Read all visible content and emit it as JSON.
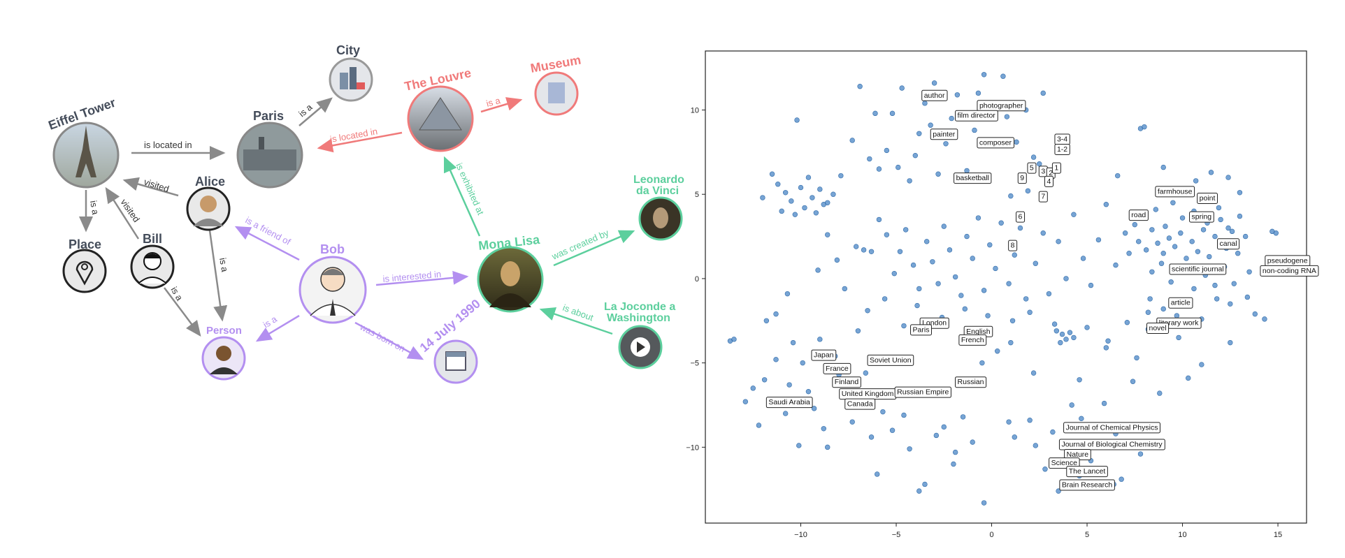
{
  "graph": {
    "nodes": {
      "eiffel_tower": "Eiffel Tower",
      "paris": "Paris",
      "city": "City",
      "louvre": "The Louvre",
      "museum": "Museum",
      "alice": "Alice",
      "bill": "Bill",
      "place": "Place",
      "bob": "Bob",
      "person": "Person",
      "mona_lisa": "Mona Lisa",
      "leonardo_line1": "Leonardo",
      "leonardo_line2": "da Vinci",
      "birthdate": "14 July 1990",
      "joconde_line1": "La Joconde a",
      "joconde_line2": "Washington"
    },
    "edges": {
      "eiffel_paris": "is located in",
      "paris_city": "is a",
      "louvre_paris": "is located in",
      "louvre_museum": "is a",
      "alice_eiffel": "visited",
      "bill_eiffel": "visited",
      "eiffel_place": "is a",
      "alice_person": "is a",
      "bill_person": "is a",
      "bob_alice": "is a friend of",
      "bob_mona": "is interested in",
      "mona_louvre": "is exhibited at",
      "mona_leonardo": "was created by",
      "joconde_mona": "is about",
      "bob_person": "is a",
      "bob_birth": "was born on"
    },
    "colors": {
      "gray": "#8a8a8a",
      "red": "#f07a7a",
      "green": "#5ccf9d",
      "purple": "#b38ff0",
      "dark_text": "#444c5a"
    }
  },
  "chart_data": {
    "type": "scatter",
    "title": "",
    "xlabel": "",
    "ylabel": "",
    "xlim": [
      -15,
      16.5
    ],
    "ylim": [
      -14.5,
      13.5
    ],
    "x_ticks": [
      -10,
      -5,
      0,
      5,
      10,
      15
    ],
    "x_tick_labels": [
      "−10",
      "−5",
      "0",
      "5",
      "10",
      "15"
    ],
    "y_ticks": [
      10,
      5,
      0,
      -5,
      -10
    ],
    "y_tick_labels": [
      "10",
      "5",
      "0",
      "−5",
      "−10"
    ],
    "point_color": "#4a86c5",
    "grid": false,
    "annotations": [
      {
        "text": "author",
        "x": -3.0,
        "y": 10.9
      },
      {
        "text": "photographer",
        "x": 0.5,
        "y": 10.3
      },
      {
        "text": "film director",
        "x": -0.8,
        "y": 9.7
      },
      {
        "text": "painter",
        "x": -2.5,
        "y": 8.6
      },
      {
        "text": "composer",
        "x": 0.2,
        "y": 8.1
      },
      {
        "text": "3-4",
        "x": 3.7,
        "y": 8.3
      },
      {
        "text": "1-2",
        "x": 3.7,
        "y": 7.7
      },
      {
        "text": "basketball",
        "x": -1.0,
        "y": 6.0
      },
      {
        "text": "5",
        "x": 2.1,
        "y": 6.6
      },
      {
        "text": "3",
        "x": 2.7,
        "y": 6.4
      },
      {
        "text": "2",
        "x": 3.1,
        "y": 6.3
      },
      {
        "text": "1",
        "x": 3.4,
        "y": 6.6
      },
      {
        "text": "9",
        "x": 1.6,
        "y": 6.0
      },
      {
        "text": "4",
        "x": 3.0,
        "y": 5.8
      },
      {
        "text": "7",
        "x": 2.7,
        "y": 4.9
      },
      {
        "text": "6",
        "x": 1.5,
        "y": 3.7
      },
      {
        "text": "8",
        "x": 1.1,
        "y": 2.0
      },
      {
        "text": "farmhouse",
        "x": 9.6,
        "y": 5.2
      },
      {
        "text": "point",
        "x": 11.3,
        "y": 4.8
      },
      {
        "text": "road",
        "x": 7.7,
        "y": 3.8
      },
      {
        "text": "spring",
        "x": 11.0,
        "y": 3.7
      },
      {
        "text": "canal",
        "x": 12.4,
        "y": 2.1
      },
      {
        "text": "pseudogene",
        "x": 15.5,
        "y": 1.1
      },
      {
        "text": "non-coding RNA",
        "x": 15.6,
        "y": 0.5
      },
      {
        "text": "scientific journal",
        "x": 10.8,
        "y": 0.6
      },
      {
        "text": "article",
        "x": 9.9,
        "y": -1.4
      },
      {
        "text": "literary work",
        "x": 9.8,
        "y": -2.6
      },
      {
        "text": "novel",
        "x": 8.7,
        "y": -2.9
      },
      {
        "text": "London",
        "x": -3.0,
        "y": -2.6
      },
      {
        "text": "Paris",
        "x": -3.7,
        "y": -3.0
      },
      {
        "text": "English",
        "x": -0.7,
        "y": -3.1
      },
      {
        "text": "French",
        "x": -1.0,
        "y": -3.6
      },
      {
        "text": "Japan",
        "x": -8.8,
        "y": -4.5
      },
      {
        "text": "Soviet Union",
        "x": -5.3,
        "y": -4.8
      },
      {
        "text": "France",
        "x": -8.1,
        "y": -5.3
      },
      {
        "text": "Finland",
        "x": -7.6,
        "y": -6.1
      },
      {
        "text": "Russian",
        "x": -1.1,
        "y": -6.1
      },
      {
        "text": "United Kingdom",
        "x": -6.5,
        "y": -6.8
      },
      {
        "text": "Russian Empire",
        "x": -3.6,
        "y": -6.7
      },
      {
        "text": "Saudi Arabia",
        "x": -10.6,
        "y": -7.3
      },
      {
        "text": "Canada",
        "x": -6.9,
        "y": -7.4
      },
      {
        "text": "Journal of Chemical Physics",
        "x": 6.3,
        "y": -8.8
      },
      {
        "text": "Journal of Biological Chemistry",
        "x": 6.3,
        "y": -9.8
      },
      {
        "text": "Nature",
        "x": 4.5,
        "y": -10.4
      },
      {
        "text": "Science",
        "x": 3.8,
        "y": -10.9
      },
      {
        "text": "The Lancet",
        "x": 5.0,
        "y": -11.4
      },
      {
        "text": "Brain Research",
        "x": 5.0,
        "y": -12.2
      }
    ],
    "points": [
      [
        -13.7,
        -3.7
      ],
      [
        -13.5,
        -3.6
      ],
      [
        -12.9,
        -7.3
      ],
      [
        -12.5,
        -6.5
      ],
      [
        -12.2,
        -8.7
      ],
      [
        -12.0,
        4.8
      ],
      [
        -11.8,
        -2.5
      ],
      [
        -11.9,
        -6.0
      ],
      [
        -11.3,
        -4.8
      ],
      [
        -11.0,
        -7.2
      ],
      [
        -10.8,
        -8.0
      ],
      [
        -10.6,
        -6.3
      ],
      [
        -10.4,
        -3.8
      ],
      [
        -10.1,
        -9.9
      ],
      [
        -9.9,
        -5.0
      ],
      [
        -9.6,
        -6.7
      ],
      [
        -9.3,
        -7.7
      ],
      [
        -9.0,
        -3.6
      ],
      [
        -8.8,
        -8.9
      ],
      [
        -8.6,
        -10.0
      ],
      [
        -8.2,
        -4.6
      ],
      [
        -8.0,
        -5.7
      ],
      [
        -7.6,
        -6.9
      ],
      [
        -7.3,
        -8.5
      ],
      [
        -7.0,
        -3.1
      ],
      [
        -6.6,
        -5.6
      ],
      [
        -6.3,
        -9.4
      ],
      [
        -6.0,
        -11.6
      ],
      [
        -5.7,
        -7.9
      ],
      [
        -5.2,
        -9.0
      ],
      [
        -4.6,
        -8.1
      ],
      [
        -4.3,
        -10.1
      ],
      [
        -3.8,
        -12.6
      ],
      [
        -3.5,
        -12.2
      ],
      [
        -2.9,
        -9.3
      ],
      [
        -2.5,
        -8.8
      ],
      [
        -2.0,
        -11.0
      ],
      [
        -1.9,
        -10.3
      ],
      [
        -1.5,
        -8.2
      ],
      [
        -1.0,
        -9.7
      ],
      [
        -0.4,
        -13.3
      ],
      [
        -11.5,
        6.2
      ],
      [
        -11.2,
        5.6
      ],
      [
        -11.0,
        4.0
      ],
      [
        -10.8,
        5.1
      ],
      [
        -10.5,
        4.6
      ],
      [
        -10.3,
        3.8
      ],
      [
        -10.0,
        5.4
      ],
      [
        -9.8,
        4.2
      ],
      [
        -9.6,
        6.0
      ],
      [
        -9.4,
        4.8
      ],
      [
        -9.2,
        3.9
      ],
      [
        -9.0,
        5.3
      ],
      [
        -8.8,
        4.4
      ],
      [
        -8.6,
        4.5
      ],
      [
        -8.3,
        5.0
      ],
      [
        -7.9,
        6.1
      ],
      [
        -10.2,
        9.4
      ],
      [
        -7.3,
        8.2
      ],
      [
        -6.9,
        11.4
      ],
      [
        -6.4,
        7.1
      ],
      [
        -6.1,
        9.8
      ],
      [
        -5.9,
        6.5
      ],
      [
        -5.5,
        7.6
      ],
      [
        -5.2,
        9.8
      ],
      [
        -4.9,
        6.6
      ],
      [
        -4.7,
        11.3
      ],
      [
        -4.3,
        5.8
      ],
      [
        -4.0,
        7.3
      ],
      [
        -3.8,
        8.6
      ],
      [
        -3.5,
        10.4
      ],
      [
        -3.2,
        9.1
      ],
      [
        -3.0,
        11.6
      ],
      [
        -2.8,
        6.2
      ],
      [
        -2.4,
        8.0
      ],
      [
        -2.1,
        9.5
      ],
      [
        -1.8,
        10.9
      ],
      [
        -1.3,
        6.4
      ],
      [
        -0.9,
        8.8
      ],
      [
        -0.7,
        11.0
      ],
      [
        -0.4,
        12.1
      ],
      [
        0.6,
        12.0
      ],
      [
        0.8,
        9.6
      ],
      [
        1.3,
        8.1
      ],
      [
        1.8,
        10.0
      ],
      [
        2.2,
        7.2
      ],
      [
        2.7,
        11.0
      ],
      [
        2.5,
        6.8
      ],
      [
        1.9,
        5.2
      ],
      [
        1.0,
        4.9
      ],
      [
        -7.1,
        1.9
      ],
      [
        -6.7,
        1.7
      ],
      [
        -6.3,
        1.6
      ],
      [
        -5.9,
        3.5
      ],
      [
        -5.5,
        2.6
      ],
      [
        -5.1,
        0.3
      ],
      [
        -4.8,
        1.6
      ],
      [
        -4.5,
        2.9
      ],
      [
        -4.1,
        0.8
      ],
      [
        -3.8,
        -0.6
      ],
      [
        -3.4,
        2.2
      ],
      [
        -3.1,
        1.0
      ],
      [
        -2.8,
        -0.3
      ],
      [
        -2.5,
        3.1
      ],
      [
        -2.2,
        1.7
      ],
      [
        -1.9,
        0.1
      ],
      [
        -1.6,
        -1.0
      ],
      [
        -1.3,
        2.5
      ],
      [
        -1.0,
        1.2
      ],
      [
        -0.7,
        3.6
      ],
      [
        -0.4,
        -0.7
      ],
      [
        -0.1,
        2.0
      ],
      [
        0.2,
        0.6
      ],
      [
        0.5,
        3.3
      ],
      [
        0.9,
        -0.3
      ],
      [
        1.2,
        1.4
      ],
      [
        1.5,
        3.0
      ],
      [
        1.8,
        -1.2
      ],
      [
        2.3,
        0.9
      ],
      [
        2.7,
        2.7
      ],
      [
        3.0,
        -0.9
      ],
      [
        3.5,
        2.2
      ],
      [
        3.9,
        0.0
      ],
      [
        4.3,
        3.8
      ],
      [
        4.8,
        1.2
      ],
      [
        5.2,
        -0.4
      ],
      [
        5.6,
        2.3
      ],
      [
        6.0,
        4.4
      ],
      [
        6.5,
        0.8
      ],
      [
        7.0,
        2.7
      ],
      [
        -8.1,
        1.1
      ],
      [
        -8.6,
        2.6
      ],
      [
        -9.1,
        0.5
      ],
      [
        -7.7,
        -0.6
      ],
      [
        -6.5,
        -1.9
      ],
      [
        -5.6,
        -1.2
      ],
      [
        -4.6,
        -2.8
      ],
      [
        -3.9,
        -1.6
      ],
      [
        -2.6,
        -2.3
      ],
      [
        -1.4,
        -1.8
      ],
      [
        -0.2,
        -2.2
      ],
      [
        1.1,
        -2.5
      ],
      [
        2.0,
        -2.0
      ],
      [
        -10.7,
        -0.9
      ],
      [
        -11.3,
        -2.1
      ],
      [
        3.4,
        -3.1
      ],
      [
        3.7,
        -3.3
      ],
      [
        3.9,
        -3.6
      ],
      [
        4.1,
        -3.2
      ],
      [
        3.6,
        -3.8
      ],
      [
        4.3,
        -3.5
      ],
      [
        3.3,
        -2.7
      ],
      [
        5.0,
        -2.9
      ],
      [
        6.1,
        -3.7
      ],
      [
        7.1,
        -2.6
      ],
      [
        1.0,
        -3.8
      ],
      [
        0.3,
        -4.3
      ],
      [
        -0.5,
        -5.0
      ],
      [
        2.2,
        -5.6
      ],
      [
        4.6,
        -6.0
      ],
      [
        6.0,
        -4.1
      ],
      [
        7.6,
        -4.7
      ],
      [
        8.2,
        -3.0
      ],
      [
        7.2,
        1.5
      ],
      [
        7.7,
        2.2
      ],
      [
        8.1,
        1.7
      ],
      [
        8.4,
        2.9
      ],
      [
        8.7,
        2.1
      ],
      [
        9.0,
        1.5
      ],
      [
        9.3,
        2.4
      ],
      [
        9.6,
        1.9
      ],
      [
        9.9,
        2.7
      ],
      [
        10.2,
        1.2
      ],
      [
        10.5,
        2.2
      ],
      [
        10.8,
        1.6
      ],
      [
        11.1,
        2.9
      ],
      [
        11.4,
        1.3
      ],
      [
        11.7,
        2.5
      ],
      [
        12.0,
        3.5
      ],
      [
        12.3,
        1.8
      ],
      [
        12.6,
        2.8
      ],
      [
        12.9,
        1.5
      ],
      [
        7.5,
        3.2
      ],
      [
        8.0,
        3.7
      ],
      [
        8.6,
        4.1
      ],
      [
        9.1,
        3.1
      ],
      [
        9.5,
        4.5
      ],
      [
        10.0,
        3.6
      ],
      [
        10.6,
        4.0
      ],
      [
        11.3,
        3.3
      ],
      [
        11.9,
        4.2
      ],
      [
        12.4,
        3.0
      ],
      [
        13.0,
        3.7
      ],
      [
        13.3,
        2.5
      ],
      [
        8.4,
        0.4
      ],
      [
        8.9,
        0.9
      ],
      [
        9.4,
        -0.2
      ],
      [
        10.0,
        0.5
      ],
      [
        10.6,
        -0.6
      ],
      [
        11.2,
        0.2
      ],
      [
        11.7,
        -0.4
      ],
      [
        12.2,
        0.7
      ],
      [
        12.7,
        -0.3
      ],
      [
        8.3,
        -1.2
      ],
      [
        9.0,
        -1.8
      ],
      [
        9.7,
        -2.2
      ],
      [
        10.4,
        -1.6
      ],
      [
        11.0,
        -2.4
      ],
      [
        8.2,
        -2.0
      ],
      [
        9.8,
        -3.5
      ],
      [
        11.8,
        -1.2
      ],
      [
        12.5,
        -1.5
      ],
      [
        13.4,
        -1.1
      ],
      [
        13.8,
        -2.1
      ],
      [
        14.3,
        -2.4
      ],
      [
        14.7,
        2.8
      ],
      [
        14.9,
        2.7
      ],
      [
        13.5,
        0.4
      ],
      [
        7.8,
        8.9
      ],
      [
        8.0,
        9.0
      ],
      [
        9.0,
        6.6
      ],
      [
        6.6,
        6.1
      ],
      [
        10.7,
        5.8
      ],
      [
        11.5,
        6.3
      ],
      [
        12.4,
        6.0
      ],
      [
        13.0,
        5.1
      ],
      [
        11.0,
        -5.1
      ],
      [
        12.5,
        -3.8
      ],
      [
        10.3,
        -5.9
      ],
      [
        8.8,
        -6.8
      ],
      [
        7.4,
        -6.1
      ],
      [
        4.2,
        -7.5
      ],
      [
        4.7,
        -8.3
      ],
      [
        5.9,
        -7.4
      ],
      [
        6.5,
        -9.2
      ],
      [
        7.8,
        -10.4
      ],
      [
        5.2,
        -10.8
      ],
      [
        4.6,
        -11.7
      ],
      [
        5.7,
        -12.4
      ],
      [
        2.3,
        -9.9
      ],
      [
        2.8,
        -11.3
      ],
      [
        3.5,
        -12.6
      ],
      [
        2.0,
        -8.4
      ],
      [
        0.9,
        -8.5
      ],
      [
        1.2,
        -9.4
      ],
      [
        3.2,
        -9.1
      ],
      [
        6.4,
        -12.2
      ],
      [
        6.8,
        -11.9
      ]
    ]
  }
}
